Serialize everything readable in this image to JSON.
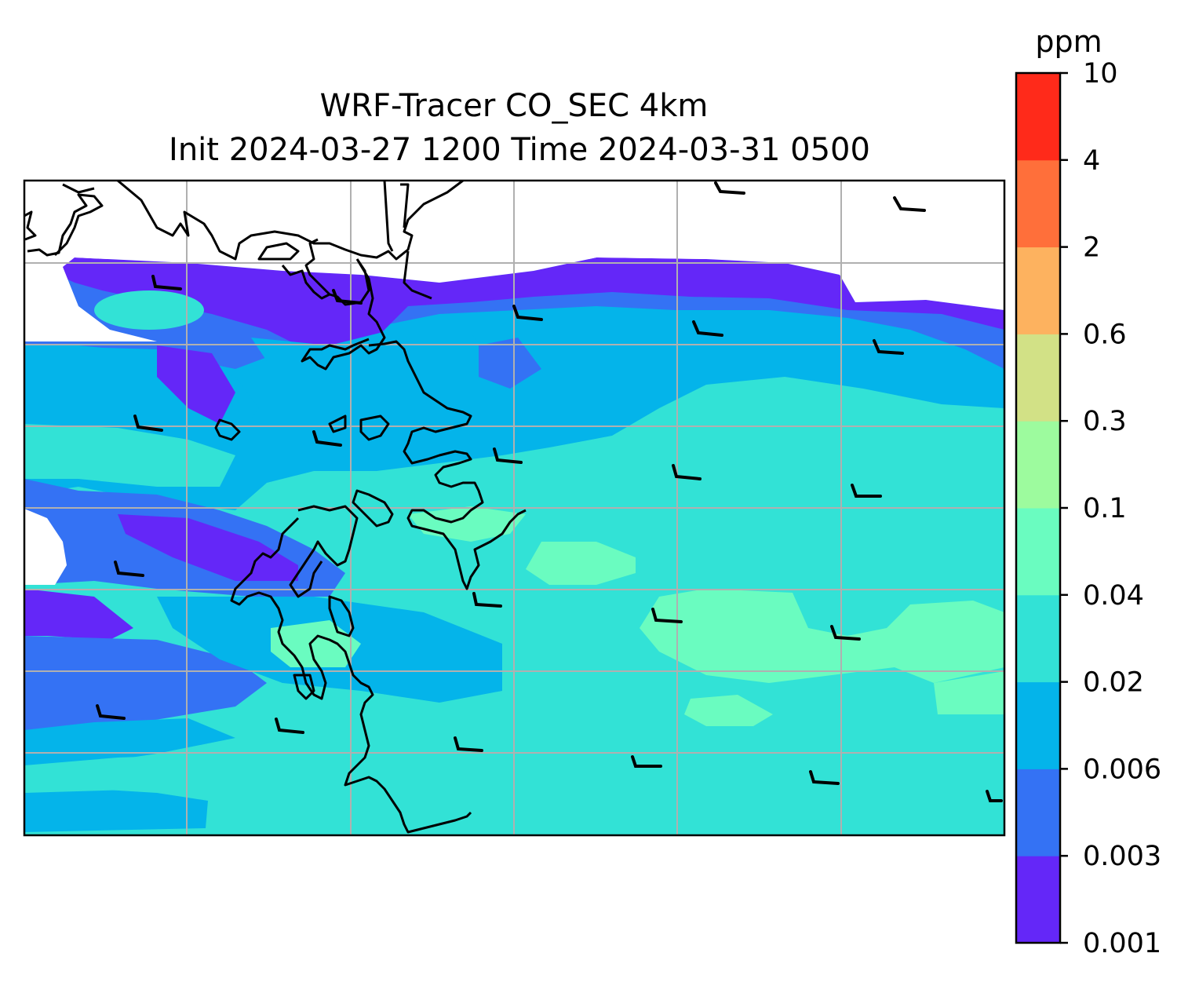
{
  "title_line1": "WRF-Tracer CO_SEC 4km",
  "title_line2": "Init 2024-03-27 1200 Time 2024-03-31 0500",
  "colorbar": {
    "unit": "ppm",
    "levels": [
      "0.001",
      "0.003",
      "0.006",
      "0.02",
      "0.04",
      "0.1",
      "0.3",
      "0.6",
      "2",
      "4",
      "10"
    ],
    "colors": [
      "#6427f8",
      "#3472f4",
      "#04b4ea",
      "#32e2d6",
      "#6afcc0",
      "#9dfb9e",
      "#d2e186",
      "#fdb25f",
      "#ff6f3a",
      "#ff2a1a"
    ]
  },
  "map": {
    "background": "#ffffff",
    "gridline_color": "#b0b0b0",
    "coastline_color": "#000000",
    "wind_barbs": "black wind barbs (calm/light westerly winds)"
  },
  "chart_data": {
    "type": "heatmap",
    "title": "WRF-Tracer CO_SEC 4km\nInit 2024-03-27 1200 Time 2024-03-31 0500",
    "colorbar_label": "ppm",
    "colorbar_levels": [
      0.001,
      0.003,
      0.006,
      0.02,
      0.04,
      0.1,
      0.3,
      0.6,
      2,
      4,
      10
    ],
    "dominant_level_range": [
      0.006,
      0.04
    ],
    "grid": true,
    "legend": "colorbar right"
  }
}
